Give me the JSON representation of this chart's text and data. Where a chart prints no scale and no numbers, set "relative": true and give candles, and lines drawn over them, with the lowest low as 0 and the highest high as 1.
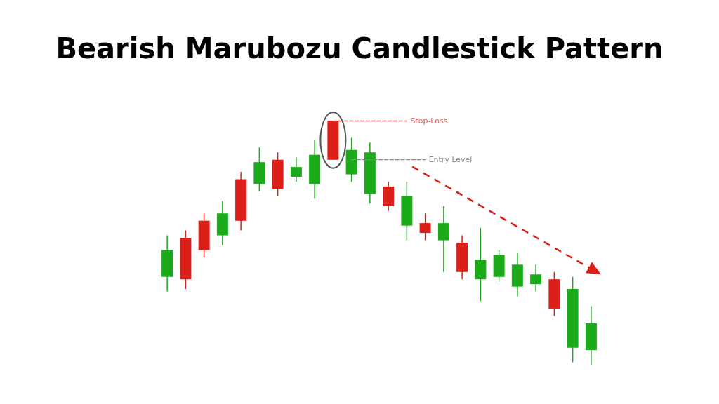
{
  "chart_data": {
    "type": "candlestick",
    "title": "Bearish Marubozu Candlestick Pattern",
    "relative": true,
    "categories": [
      null,
      null,
      null,
      null,
      null,
      null,
      null,
      null,
      null,
      null,
      null,
      null,
      null,
      null,
      null,
      null,
      null,
      null,
      null,
      null,
      null,
      null,
      null,
      null
    ],
    "ohlc": [
      [
        0.36,
        0.53,
        0.3,
        0.47
      ],
      [
        0.52,
        0.55,
        0.31,
        0.35
      ],
      [
        0.59,
        0.62,
        0.44,
        0.47
      ],
      [
        0.53,
        0.67,
        0.49,
        0.62
      ],
      [
        0.76,
        0.79,
        0.55,
        0.59
      ],
      [
        0.74,
        0.89,
        0.71,
        0.83
      ],
      [
        0.84,
        0.87,
        0.69,
        0.72
      ],
      [
        0.77,
        0.85,
        0.75,
        0.81
      ],
      [
        0.74,
        0.92,
        0.68,
        0.86
      ],
      [
        1,
        1,
        0.84,
        0.84
      ],
      [
        0.78,
        0.93,
        0.75,
        0.88
      ],
      [
        0.7,
        0.91,
        0.66,
        0.87
      ],
      [
        0.73,
        0.75,
        0.63,
        0.65
      ],
      [
        0.57,
        0.75,
        0.51,
        0.69
      ],
      [
        0.58,
        0.62,
        0.51,
        0.54
      ],
      [
        0.51,
        0.65,
        0.38,
        0.58
      ],
      [
        0.5,
        0.53,
        0.35,
        0.38
      ],
      [
        0.35,
        0.56,
        0.26,
        0.43
      ],
      [
        0.36,
        0.47,
        0.34,
        0.45
      ],
      [
        0.32,
        0.46,
        0.28,
        0.41
      ],
      [
        0.33,
        0.41,
        0.3,
        0.37
      ],
      [
        0.35,
        0.38,
        0.2,
        0.23
      ],
      [
        0.07,
        0.36,
        0.01,
        0.31
      ],
      [
        0.06,
        0.24,
        0,
        0.17
      ]
    ],
    "colors": [
      "#1aaa1a",
      "#dd1f1a",
      "#dd1f1a",
      "#1aaa1a",
      "#dd1f1a",
      "#1aaa1a",
      "#dd1f1a",
      "#1aaa1a",
      "#1aaa1a",
      "#dd1f1a",
      "#1aaa1a",
      "#1aaa1a",
      "#dd1f1a",
      "#1aaa1a",
      "#dd1f1a",
      "#1aaa1a",
      "#dd1f1a",
      "#1aaa1a",
      "#1aaa1a",
      "#1aaa1a",
      "#1aaa1a",
      "#dd1f1a",
      "#1aaa1a",
      "#1aaa1a"
    ],
    "ref_lines": [
      {
        "axis": "y",
        "value": 1,
        "label": "Stop-Loss",
        "color": "#e05a57",
        "line_style": "dashed"
      },
      {
        "axis": "y",
        "value": 0.84,
        "label": "Entry Level",
        "color": "#8a8a8a",
        "line_style": "dashed"
      }
    ]
  }
}
